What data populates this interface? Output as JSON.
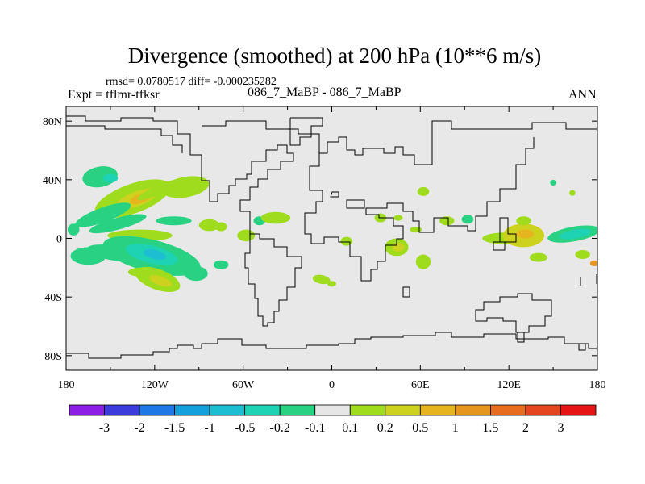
{
  "chart_data": {
    "type": "contour-map",
    "title": "Divergence (smoothed) at 200 hPa (10**6 m/s)",
    "stats_line": "rmsd= 0.0780517 diff= -0.000235282",
    "experiment_label": "Expt = tflmr-tfksr",
    "comparison_label": "086_7_MaBP - 086_7_MaBP",
    "season": "ANN",
    "x_ticks": [
      "180",
      "120W",
      "60W",
      "0",
      "60E",
      "120E",
      "180"
    ],
    "x_values": [
      -180,
      -120,
      -60,
      0,
      60,
      120,
      180
    ],
    "y_ticks": [
      "80N",
      "40N",
      "0",
      "40S",
      "80S"
    ],
    "y_values": [
      80,
      40,
      0,
      -40,
      -80
    ],
    "xlim": [
      -180,
      180
    ],
    "ylim": [
      -90,
      90
    ],
    "colorbar": {
      "labels": [
        "-3",
        "-2",
        "-1.5",
        "-1",
        "-0.5",
        "-0.2",
        "-0.1",
        "0.1",
        "0.2",
        "0.5",
        "1",
        "1.5",
        "2",
        "3"
      ],
      "colors": [
        "#8c1ee6",
        "#3c3cdc",
        "#1e78e6",
        "#14a0dc",
        "#1ebed2",
        "#1ed2b4",
        "#28d282",
        "#e6e6e6",
        "#a0dc1e",
        "#cdd21e",
        "#e6b41e",
        "#e6961e",
        "#e66e1e",
        "#e6461e",
        "#e61414"
      ]
    },
    "regions": [
      {
        "lon": -157,
        "lat": 42,
        "rx": 12,
        "ry": 7,
        "rot": -10,
        "level": "-0.1"
      },
      {
        "lon": -150,
        "lat": 41,
        "rx": 5,
        "ry": 3,
        "rot": 0,
        "level": "-0.2"
      },
      {
        "lon": -135,
        "lat": 27,
        "rx": 27,
        "ry": 10,
        "rot": -20,
        "level": "0.1"
      },
      {
        "lon": -132,
        "lat": 27,
        "rx": 15,
        "ry": 5,
        "rot": -20,
        "level": "0.2"
      },
      {
        "lon": -130,
        "lat": 27,
        "rx": 7,
        "ry": 3,
        "rot": -20,
        "level": "0.5"
      },
      {
        "lon": -118,
        "lat": 33,
        "rx": 15,
        "ry": 3,
        "rot": -25,
        "level": "0.1"
      },
      {
        "lon": -99,
        "lat": 35,
        "rx": 16,
        "ry": 7,
        "rot": -10,
        "level": "0.1"
      },
      {
        "lon": -175,
        "lat": 6,
        "rx": 4,
        "ry": 4,
        "rot": 0,
        "level": "-0.1"
      },
      {
        "lon": -155,
        "lat": 16,
        "rx": 20,
        "ry": 5,
        "rot": -20,
        "level": "-0.1"
      },
      {
        "lon": -145,
        "lat": 10,
        "rx": 20,
        "ry": 4,
        "rot": -15,
        "level": "-0.1"
      },
      {
        "lon": -107,
        "lat": 12,
        "rx": 12,
        "ry": 3,
        "rot": 0,
        "level": "-0.1"
      },
      {
        "lon": -130,
        "lat": 2,
        "rx": 22,
        "ry": 4,
        "rot": 0,
        "level": "0.1"
      },
      {
        "lon": -83,
        "lat": 9,
        "rx": 7,
        "ry": 4,
        "rot": 0,
        "level": "0.1"
      },
      {
        "lon": -75,
        "lat": 8,
        "rx": 4,
        "ry": 3,
        "rot": 0,
        "level": "0.1"
      },
      {
        "lon": -49,
        "lat": 12,
        "rx": 4,
        "ry": 3,
        "rot": 0,
        "level": "-0.1"
      },
      {
        "lon": -38,
        "lat": 14,
        "rx": 10,
        "ry": 4,
        "rot": 0,
        "level": "0.1"
      },
      {
        "lon": -58,
        "lat": 2,
        "rx": 6,
        "ry": 4,
        "rot": 0,
        "level": "0.1"
      },
      {
        "lon": -165,
        "lat": -12,
        "rx": 12,
        "ry": 6,
        "rot": 0,
        "level": "-0.1"
      },
      {
        "lon": -148,
        "lat": -10,
        "rx": 18,
        "ry": 5,
        "rot": 10,
        "level": "-0.1"
      },
      {
        "lon": -122,
        "lat": -12,
        "rx": 34,
        "ry": 11,
        "rot": 14,
        "level": "-0.1"
      },
      {
        "lon": -122,
        "lat": -11,
        "rx": 18,
        "ry": 6,
        "rot": 14,
        "level": "-0.2"
      },
      {
        "lon": -120,
        "lat": -11,
        "rx": 8,
        "ry": 3,
        "rot": 14,
        "level": "-0.5"
      },
      {
        "lon": -112,
        "lat": -22,
        "rx": 12,
        "ry": 4,
        "rot": 0,
        "level": "-0.1"
      },
      {
        "lon": -130,
        "lat": -23,
        "rx": 8,
        "ry": 3,
        "rot": 0,
        "level": "0.1"
      },
      {
        "lon": -118,
        "lat": -28,
        "rx": 16,
        "ry": 7,
        "rot": 20,
        "level": "0.1"
      },
      {
        "lon": -116,
        "lat": -29,
        "rx": 8,
        "ry": 3,
        "rot": 20,
        "level": "0.2"
      },
      {
        "lon": -92,
        "lat": -24,
        "rx": 8,
        "ry": 5,
        "rot": 0,
        "level": "-0.1"
      },
      {
        "lon": -75,
        "lat": -18,
        "rx": 5,
        "ry": 3,
        "rot": 0,
        "level": "-0.1"
      },
      {
        "lon": -7,
        "lat": -28,
        "rx": 6,
        "ry": 3,
        "rot": 10,
        "level": "0.1"
      },
      {
        "lon": 0,
        "lat": -31,
        "rx": 3,
        "ry": 2,
        "rot": 0,
        "level": "0.1"
      },
      {
        "lon": 10,
        "lat": -2,
        "rx": 4,
        "ry": 3,
        "rot": 0,
        "level": "0.1"
      },
      {
        "lon": 44,
        "lat": -6,
        "rx": 8,
        "ry": 6,
        "rot": 0,
        "level": "0.1"
      },
      {
        "lon": 45,
        "lat": -6,
        "rx": 4,
        "ry": 3,
        "rot": 0,
        "level": "0.2"
      },
      {
        "lon": 62,
        "lat": -16,
        "rx": 5,
        "ry": 5,
        "rot": 0,
        "level": "0.1"
      },
      {
        "lon": 62,
        "lat": 32,
        "rx": 4,
        "ry": 3,
        "rot": 0,
        "level": "0.1"
      },
      {
        "lon": 57,
        "lat": 6,
        "rx": 4,
        "ry": 2,
        "rot": 0,
        "level": "0.1"
      },
      {
        "lon": 33,
        "lat": 14,
        "rx": 4,
        "ry": 3,
        "rot": 0,
        "level": "0.1"
      },
      {
        "lon": 45,
        "lat": 14,
        "rx": 3,
        "ry": 2,
        "rot": 0,
        "level": "0.1"
      },
      {
        "lon": 78,
        "lat": 12,
        "rx": 5,
        "ry": 3,
        "rot": 0,
        "level": "0.1"
      },
      {
        "lon": 92,
        "lat": 13,
        "rx": 4,
        "ry": 3,
        "rot": 0,
        "level": "-0.1"
      },
      {
        "lon": 118,
        "lat": 0,
        "rx": 16,
        "ry": 4,
        "rot": 0,
        "level": "0.1"
      },
      {
        "lon": 130,
        "lat": 2,
        "rx": 14,
        "ry": 8,
        "rot": 0,
        "level": "0.2"
      },
      {
        "lon": 131,
        "lat": 3,
        "rx": 6,
        "ry": 3,
        "rot": 0,
        "level": "0.5"
      },
      {
        "lon": 130,
        "lat": 12,
        "rx": 5,
        "ry": 3,
        "rot": 0,
        "level": "0.1"
      },
      {
        "lon": 164,
        "lat": 3,
        "rx": 18,
        "ry": 5,
        "rot": -10,
        "level": "-0.1"
      },
      {
        "lon": 165,
        "lat": 3,
        "rx": 11,
        "ry": 3,
        "rot": -10,
        "level": "-0.2"
      },
      {
        "lon": 170,
        "lat": -11,
        "rx": 5,
        "ry": 3,
        "rot": 0,
        "level": "0.1"
      },
      {
        "lon": 178,
        "lat": -17,
        "rx": 3,
        "ry": 2,
        "rot": 0,
        "level": "1"
      },
      {
        "lon": 140,
        "lat": -13,
        "rx": 6,
        "ry": 3,
        "rot": 0,
        "level": "0.1"
      },
      {
        "lon": 150,
        "lat": 38,
        "rx": 2,
        "ry": 2,
        "rot": 0,
        "level": "-0.1"
      },
      {
        "lon": 163,
        "lat": 31,
        "rx": 2,
        "ry": 2,
        "rot": 0,
        "level": "0.1"
      }
    ]
  }
}
